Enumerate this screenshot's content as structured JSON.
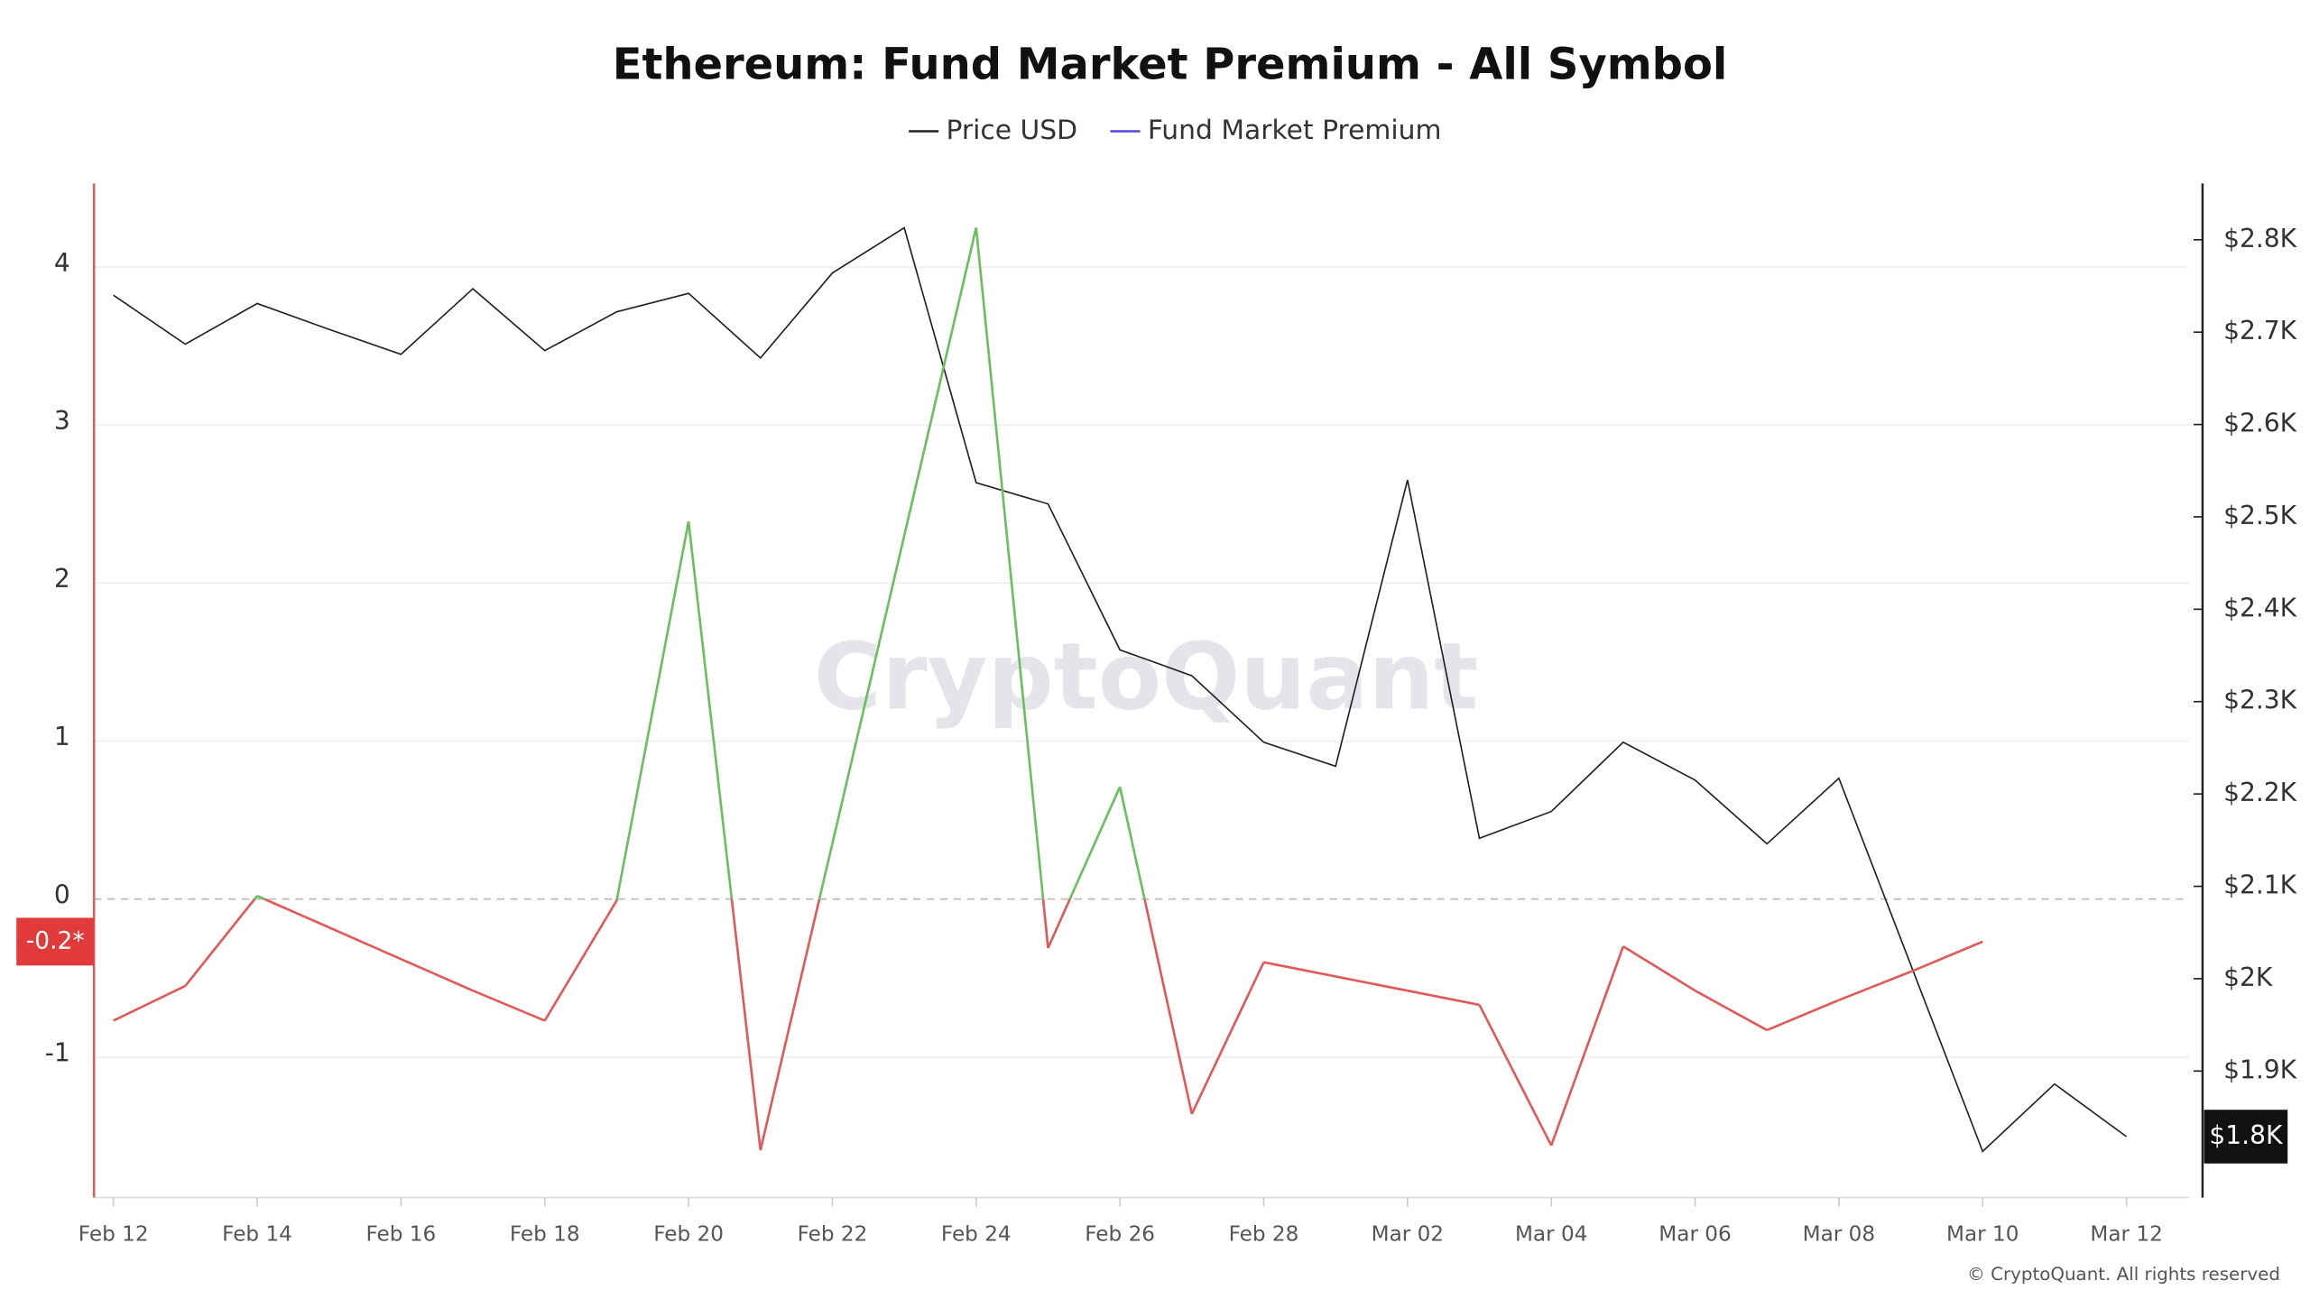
{
  "chart_data": {
    "type": "line",
    "title": "Ethereum: Fund Market Premium - All Symbol",
    "watermark": "CryptoQuant",
    "footer": "© CryptoQuant. All rights reserved",
    "categories": [
      "Feb 12",
      null,
      "Feb 14",
      null,
      "Feb 16",
      null,
      "Feb 18",
      null,
      "Feb 20",
      null,
      "Feb 22",
      null,
      "Feb 24",
      null,
      "Feb 26",
      null,
      "Feb 28",
      null,
      "Mar 02",
      null,
      "Mar 04",
      null,
      "Mar 06",
      null,
      "Mar 08",
      null,
      "Mar 10",
      null,
      "Mar 12"
    ],
    "series": [
      {
        "name": "Price USD",
        "color": "#222222",
        "axis": "y2",
        "values": [
          2740,
          2687,
          2731,
          2703,
          2676,
          2747,
          2680,
          2722,
          2742,
          2672,
          2764,
          2813,
          2537,
          2514,
          2356,
          2328,
          2256,
          2230,
          2540,
          2152,
          2181,
          2256,
          2215,
          2146,
          2217,
          2015,
          1813,
          1886,
          1829
        ]
      },
      {
        "name": "Fund Market Premium",
        "color": "#4b4bd8",
        "positive_color": "#6abf5e",
        "negative_color": "#e05a5a",
        "values": [
          -0.77,
          -0.55,
          0.02,
          -0.18,
          -0.38,
          -0.58,
          -0.77,
          -0.01,
          2.39,
          -1.59,
          0.35,
          2.3,
          4.25,
          -0.31,
          0.71,
          -1.36,
          -0.4,
          -0.49,
          -0.58,
          -0.67,
          -1.56,
          -0.3,
          -0.58,
          -0.83,
          -0.64,
          -0.46,
          -0.27,
          null,
          null
        ]
      }
    ],
    "badges": [
      "-0.2*",
      "$1.8K"
    ],
    "ylim": [
      -1.89,
      4.53
    ],
    "yticks": [
      -1,
      0,
      1,
      2,
      3,
      4
    ],
    "y2lim": [
      1763,
      2861
    ],
    "y2ticks": [
      {
        "value": 1900,
        "label": "$1.9K"
      },
      {
        "value": 2000,
        "label": "$2K"
      },
      {
        "value": 2100,
        "label": "$2.1K"
      },
      {
        "value": 2200,
        "label": "$2.2K"
      },
      {
        "value": 2300,
        "label": "$2.3K"
      },
      {
        "value": 2400,
        "label": "$2.4K"
      },
      {
        "value": 2500,
        "label": "$2.5K"
      },
      {
        "value": 2600,
        "label": "$2.6K"
      },
      {
        "value": 2700,
        "label": "$2.7K"
      },
      {
        "value": 2800,
        "label": "$2.8K"
      }
    ],
    "grid": true
  }
}
